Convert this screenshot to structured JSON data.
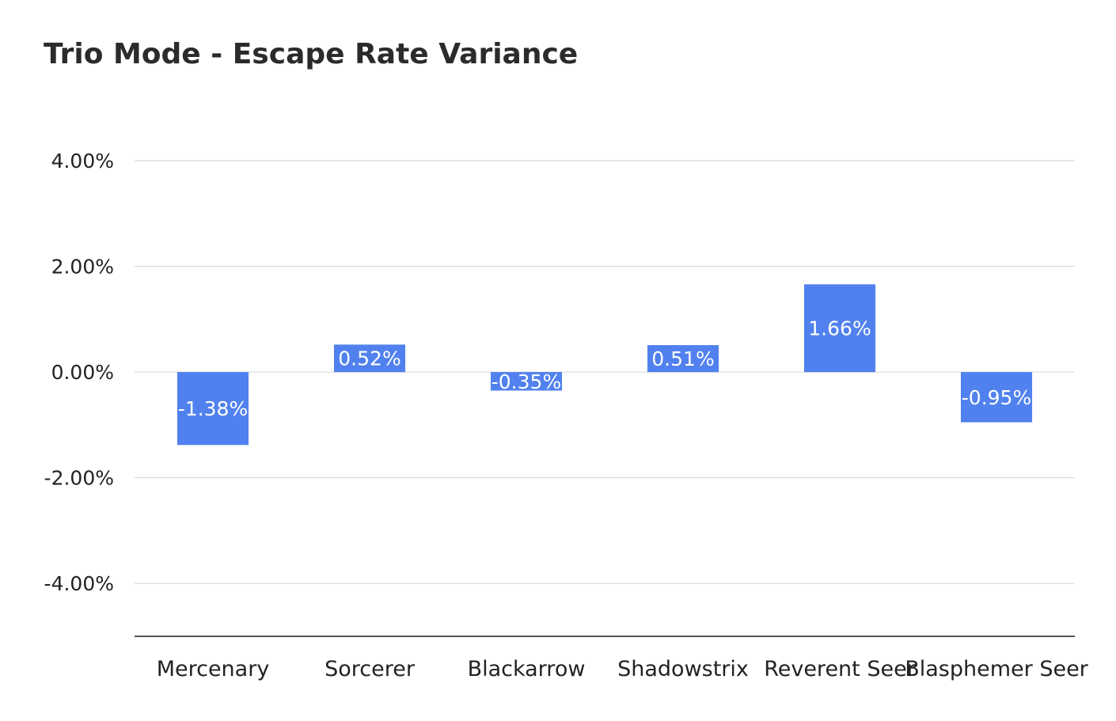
{
  "chart_data": {
    "type": "bar",
    "title": "Trio Mode - Escape Rate Variance",
    "xlabel": "",
    "ylabel": "",
    "categories": [
      "Mercenary",
      "Sorcerer",
      "Blackarrow",
      "Shadowstrix",
      "Reverent Seer",
      "Blasphemer Seer"
    ],
    "values": [
      -1.38,
      0.52,
      -0.35,
      0.51,
      1.66,
      -0.95
    ],
    "data_labels": [
      "-1.38%",
      "0.52%",
      "-0.35%",
      "0.51%",
      "1.66%",
      "-0.95%"
    ],
    "yticks": [
      4,
      2,
      0,
      -2,
      -4
    ],
    "ytick_labels": [
      "4.00%",
      "2.00%",
      "0.00%",
      "-2.00%",
      "-4.00%"
    ],
    "ylim": [
      -5,
      4
    ],
    "grid": true,
    "legend": "none",
    "bar_color": "#5181ee",
    "gridline_color": "#d3d3d3",
    "axis_color": "#555555"
  }
}
